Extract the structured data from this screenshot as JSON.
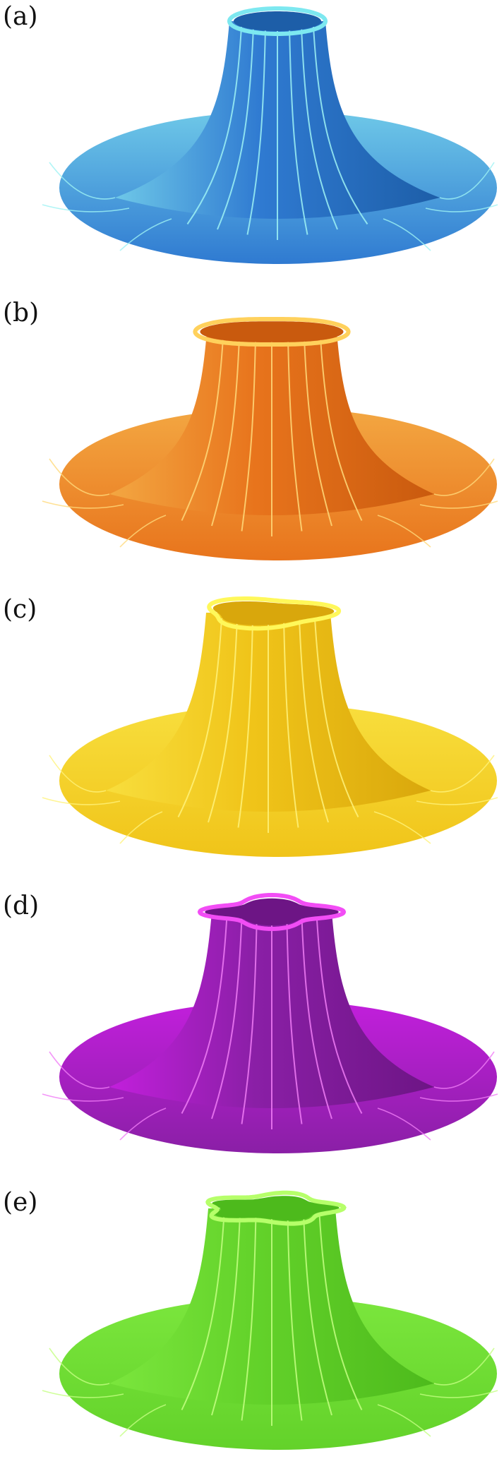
{
  "figure": {
    "panels": [
      {
        "label": "(a)",
        "shape": "circle",
        "colors": {
          "base": "#2f7ad1",
          "light": "#6ec8e8",
          "dark": "#1d5ea8",
          "rim": "#7de8f0",
          "line": "#9ef2f4"
        }
      },
      {
        "label": "(b)",
        "shape": "two-lobe",
        "colors": {
          "base": "#e8741c",
          "light": "#f3a742",
          "dark": "#c95a0e",
          "rim": "#ffd15c",
          "line": "#ffd97a"
        }
      },
      {
        "label": "(c)",
        "shape": "three-lobe",
        "colors": {
          "base": "#f0c419",
          "light": "#f8de3d",
          "dark": "#d9a70c",
          "rim": "#fff85a",
          "line": "#fff27a"
        }
      },
      {
        "label": "(d)",
        "shape": "four-lobe",
        "colors": {
          "base": "#8a1fa6",
          "light": "#c21fdc",
          "dark": "#6d1585",
          "rim": "#f24df5",
          "line": "#f07cf6"
        }
      },
      {
        "label": "(e)",
        "shape": "five-lobe",
        "colors": {
          "base": "#63d22a",
          "light": "#7be63d",
          "dark": "#4dba1c",
          "rim": "#b6ff6a",
          "line": "#c4ff82"
        }
      }
    ]
  }
}
